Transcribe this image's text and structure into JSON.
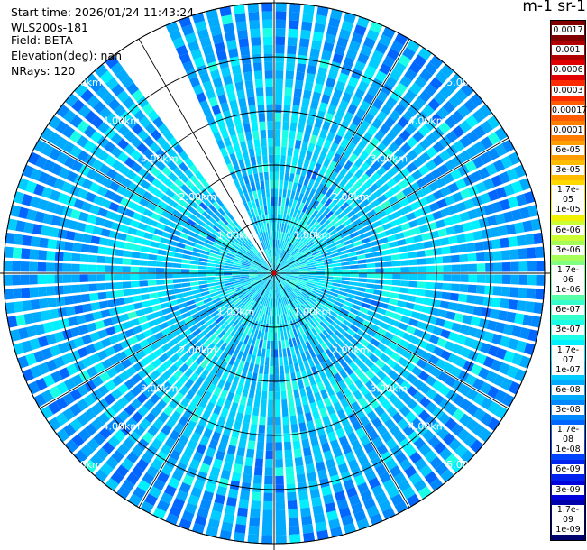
{
  "info": {
    "start_time": "Start time: 2026/01/24 11:43:24",
    "instrument": "WLS200s-181",
    "field": "Field: BETA",
    "elevation": "Elevation(deg): nan",
    "nrays": "NRays: 120"
  },
  "colorbar": {
    "title": "m-1 sr-1",
    "labels": [
      "0.0017",
      "0.001",
      "0.0006",
      "0.0003",
      "0.00017",
      "0.0001",
      "6e-05",
      "3e-05",
      "1.7e-05",
      "1e-05",
      "6e-06",
      "3e-06",
      "1.7e-06",
      "1e-06",
      "6e-07",
      "3e-07",
      "1.7e-07",
      "1e-07",
      "6e-08",
      "3e-08",
      "1.7e-08",
      "1e-08",
      "6e-09",
      "3e-09",
      "1.7e-09",
      "1e-09"
    ],
    "colors": [
      "#800000",
      "#b00000",
      "#e00000",
      "#ff2a00",
      "#ff5a00",
      "#ff7e00",
      "#ff9e00",
      "#ffbb00",
      "#ffd800",
      "#f0f000",
      "#ccff33",
      "#a6ff59",
      "#80ff80",
      "#59ffa6",
      "#33ffcc",
      "#1affe6",
      "#00f0ff",
      "#00ccff",
      "#00aaff",
      "#0088ff",
      "#0066ff",
      "#0044ff",
      "#0022ee",
      "#0000dd",
      "#0000aa",
      "#00006e"
    ]
  },
  "chart_data": {
    "type": "heatmap",
    "projection": "polar (PPI scan)",
    "field": "BETA",
    "rays": 120,
    "range_rings_km": [
      1,
      2,
      3,
      4,
      5
    ],
    "ring_labels": [
      "1.00km",
      "2.00km",
      "3.00km",
      "4.00km",
      "5.00km"
    ],
    "max_range_km": 5.0,
    "missing_sector_deg": [
      -35,
      -25
    ],
    "typical_values_by_range": [
      {
        "range_km": 1,
        "value": "1.7e-07"
      },
      {
        "range_km": 2,
        "value": "1e-07"
      },
      {
        "range_km": 3,
        "value": "1.7e-07"
      },
      {
        "range_km": 4,
        "value": "6e-08"
      },
      {
        "range_km": 5,
        "value": "3e-08"
      }
    ],
    "color_scale": "log",
    "colorbar_range": [
      "1e-09",
      "0.0017"
    ]
  }
}
